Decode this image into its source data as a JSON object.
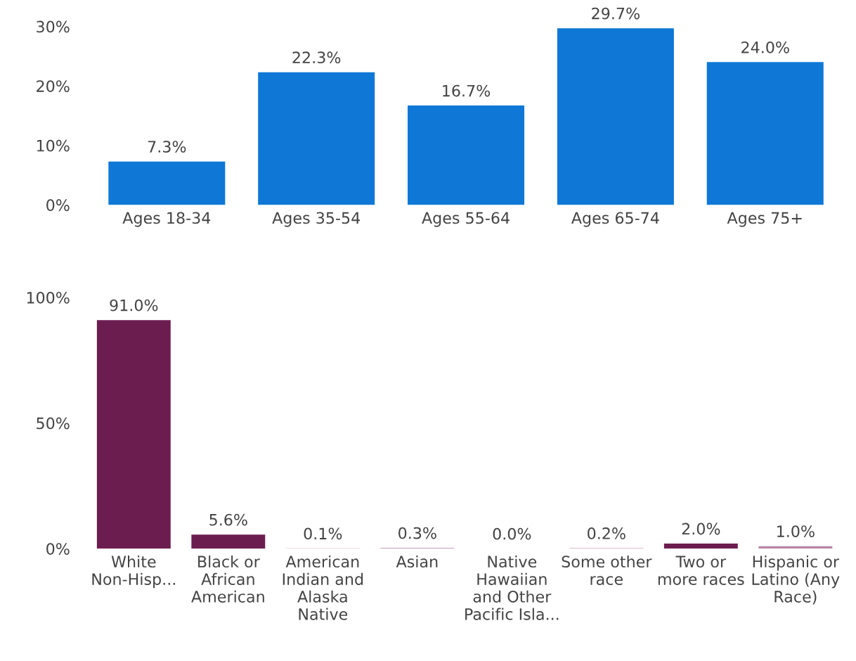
{
  "chart_data": [
    {
      "type": "bar",
      "categories": [
        "Ages 18-34",
        "Ages 35-54",
        "Ages 55-64",
        "Ages 65-74",
        "Ages 75+"
      ],
      "values": [
        7.3,
        22.3,
        16.7,
        29.7,
        24.0
      ],
      "color": "#0f78d6",
      "ylim": [
        0,
        30
      ],
      "yticks": [
        {
          "value": 0,
          "label": "0%"
        },
        {
          "value": 10,
          "label": "10%"
        },
        {
          "value": 20,
          "label": "20%"
        },
        {
          "value": 30,
          "label": "30%"
        }
      ],
      "value_labels": [
        "7.3%",
        "22.3%",
        "16.7%",
        "29.7%",
        "24.0%"
      ],
      "grid": false,
      "legend": false
    },
    {
      "type": "bar",
      "categories": [
        "White\nNon-Hisp...",
        "Black or\nAfrican\nAmerican",
        "American\nIndian and\nAlaska\nNative",
        "Asian",
        "Native\nHawaiian\nand Other\nPacific Isla...",
        "Some other\nrace",
        "Two or\nmore races",
        "Hispanic or\nLatino (Any\nRace)"
      ],
      "values": [
        91.0,
        5.6,
        0.1,
        0.3,
        0.0,
        0.2,
        2.0,
        1.0
      ],
      "colors": [
        "#6c1d50",
        "#6c1d50",
        "#b786a6",
        "#b786a6",
        "#b786a6",
        "#b786a6",
        "#6c1d50",
        "#b786a6"
      ],
      "ylim": [
        0,
        100
      ],
      "yticks": [
        {
          "value": 0,
          "label": "0%"
        },
        {
          "value": 50,
          "label": "50%"
        },
        {
          "value": 100,
          "label": "100%"
        }
      ],
      "value_labels": [
        "91.0%",
        "5.6%",
        "0.1%",
        "0.3%",
        "0.0%",
        "0.2%",
        "2.0%",
        "1.0%"
      ],
      "grid": false,
      "legend": false
    }
  ]
}
